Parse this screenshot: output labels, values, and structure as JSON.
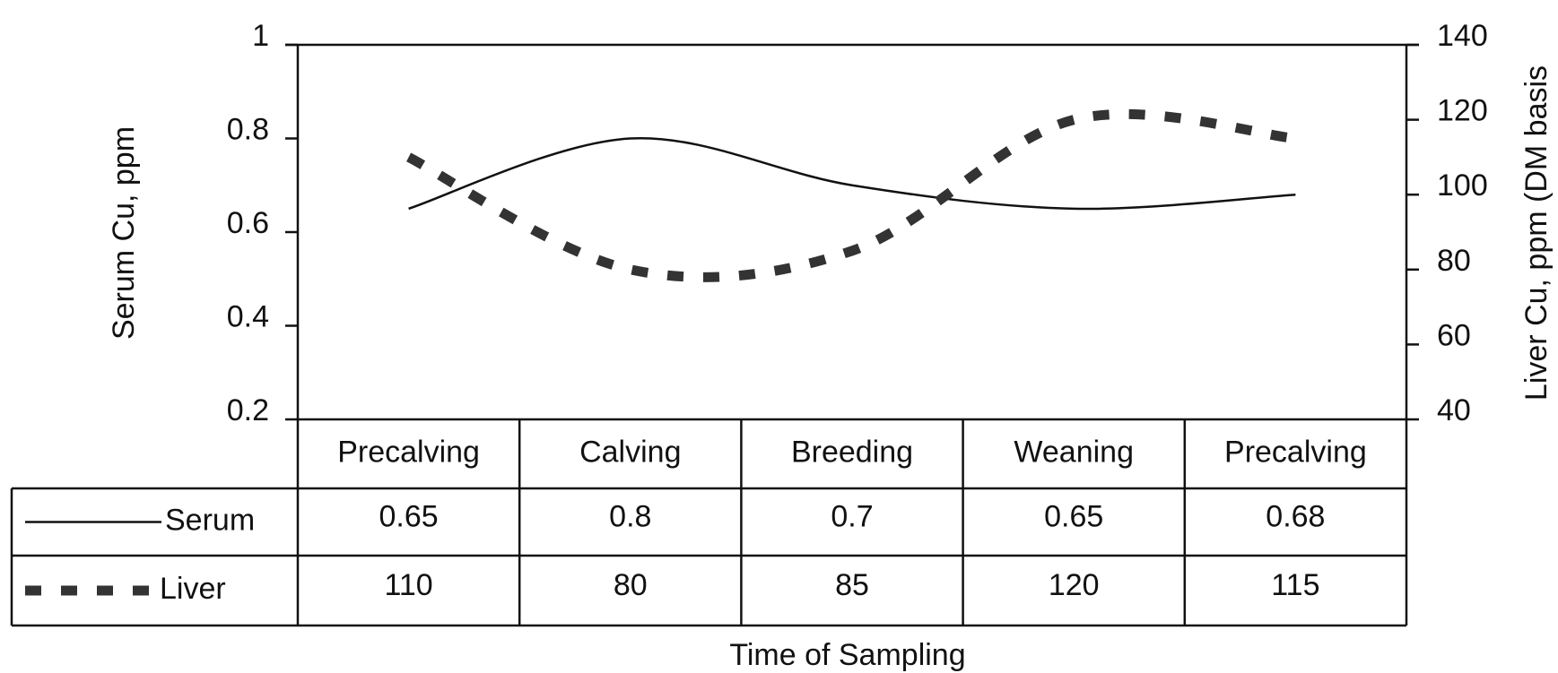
{
  "chart_data": {
    "type": "line",
    "categories": [
      "Precalving",
      "Calving",
      "Breeding",
      "Weaning",
      "Precalving"
    ],
    "series": [
      {
        "name": "Serum",
        "color": "#111111",
        "values": [
          0.65,
          0.8,
          0.7,
          0.65,
          0.68
        ]
      },
      {
        "name": "Liver",
        "color": "#333333",
        "axis": "y2",
        "values": [
          110,
          80,
          85,
          120,
          115
        ]
      }
    ],
    "ylabel": "Serum Cu, ppm",
    "y2label": "Liver Cu, ppm (DM basis",
    "xlabel": "Time of Sampling",
    "ylim": [
      0.2,
      1
    ],
    "yticks": [
      0.2,
      0.4,
      0.6,
      0.8,
      1
    ],
    "y2lim": [
      40,
      140
    ],
    "y2ticks": [
      40,
      60,
      80,
      100,
      120,
      140
    ]
  }
}
